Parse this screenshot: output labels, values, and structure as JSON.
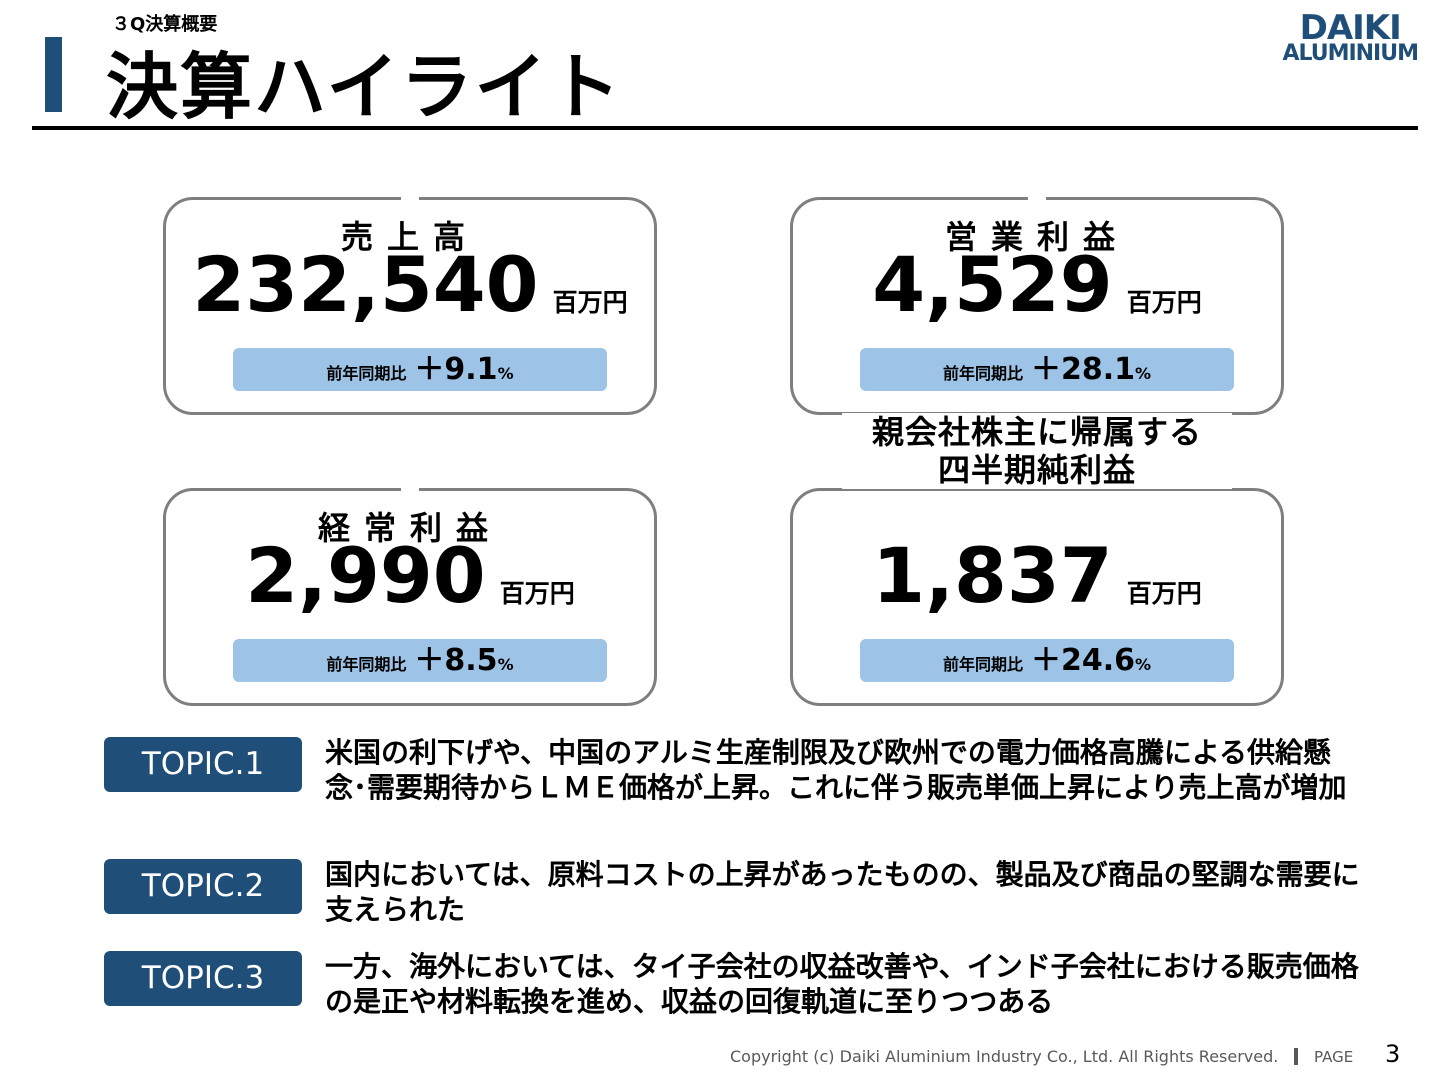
{
  "header": {
    "section": "３Q決算概要",
    "title": "決算ハイライト",
    "logo": [
      "DAIKI",
      "ALUMINIUM"
    ]
  },
  "cards": [
    {
      "label": [
        "売上高"
      ],
      "value": "232,540",
      "unit": "百万円",
      "compare_label": "前年同期比",
      "change": "＋9.1",
      "change_unit": "%"
    },
    {
      "label": [
        "営業利益"
      ],
      "value": "4,529",
      "unit": "百万円",
      "compare_label": "前年同期比",
      "change": "＋28.1",
      "change_unit": "%"
    },
    {
      "label": [
        "経常利益"
      ],
      "value": "2,990",
      "unit": "百万円",
      "compare_label": "前年同期比",
      "change": "＋8.5",
      "change_unit": "%"
    },
    {
      "label": [
        "親会社株主に帰属する",
        "四半期純利益"
      ],
      "value": "1,837",
      "unit": "百万円",
      "compare_label": "前年同期比",
      "change": "＋24.6",
      "change_unit": "%"
    }
  ],
  "topics": [
    {
      "label": "TOPIC.1",
      "text": "米国の利下げや、中国のアルミ生産制限及び欧州での電力価格高騰による供給懸念･需要期待からＬＭＥ価格が上昇。これに伴う販売単価上昇により売上高が増加"
    },
    {
      "label": "TOPIC.2",
      "text": "国内においては、原料コストの上昇があったものの、製品及び商品の堅調な需要に支えられた"
    },
    {
      "label": "TOPIC.3",
      "text": "一方、海外においては、タイ子会社の収益改善や、インド子会社における販売価格の是正や材料転換を進め、収益の回復軌道に至りつつある"
    }
  ],
  "footer": {
    "copyright": "Copyright (c) Daiki Aluminium Industry Co., Ltd. All Rights Reserved.",
    "page_label": "PAGE",
    "page_number": "3"
  }
}
